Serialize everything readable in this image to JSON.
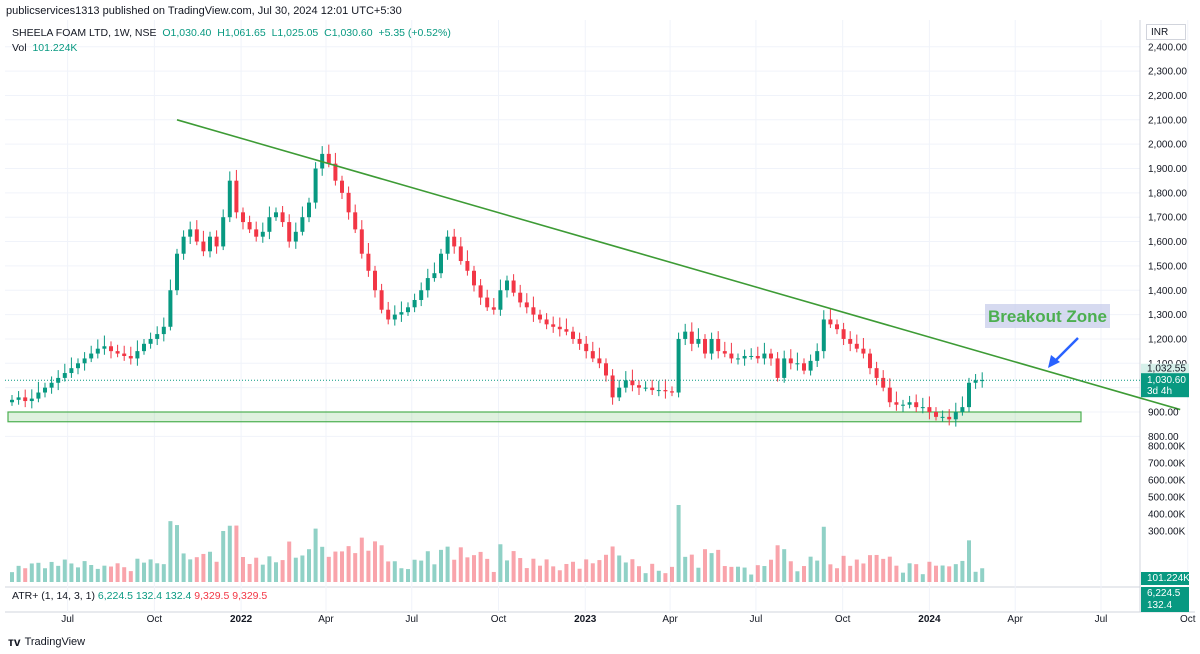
{
  "header": {
    "published": "publicservices1313 published on TradingView.com, Jul 30, 2024 12:01 UTC+5:30"
  },
  "legend": {
    "symbol": "SHEELA FOAM LTD, 1W, NSE",
    "open": "O1,030.40",
    "high": "H1,061.65",
    "low": "L1,025.05",
    "close": "C1,030.60",
    "change": "+5.35 (+0.52%)",
    "vol_label": "Vol",
    "vol_value": "101.224K"
  },
  "atr_legend": {
    "name": "ATR+ (1, 14, 3, 1)",
    "v1": "6,224.5",
    "v2": "132.4",
    "v3": "132.4",
    "v4": "9,329.5",
    "v5": "9,329.5"
  },
  "currency": "INR",
  "footer": {
    "brand": "TradingView"
  },
  "annotation": {
    "text": "Breakout Zone"
  },
  "price_labels": {
    "last": "1,030.60",
    "countdown": "3d 4h",
    "upper": "1,032.55",
    "volume": "101.224K",
    "atr": "6,224.5",
    "atr2": "132.4"
  },
  "colors": {
    "up": "#089981",
    "down": "#f23645",
    "trendline": "#3d9b35",
    "support_zone": "#4caf50",
    "annotation_text": "#4caf50",
    "annotation_bg": "#c5cae9",
    "arrow": "#2962ff"
  },
  "chart_data": {
    "type": "candlestick",
    "title": "SHEELA FOAM LTD, 1W, NSE",
    "y_axis": {
      "min": 800,
      "max": 2400,
      "ticks": [
        "800.00",
        "900.00",
        "1,000.00",
        "1,100.00",
        "1,200.00",
        "1,300.00",
        "1,400.00",
        "1,500.00",
        "1,600.00",
        "1,700.00",
        "1,800.00",
        "1,900.00",
        "2,000.00",
        "2,100.00",
        "2,200.00",
        "2,300.00",
        "2,400.00"
      ],
      "tick_values": [
        800,
        900,
        1000,
        1100,
        1200,
        1300,
        1400,
        1500,
        1600,
        1700,
        1800,
        1900,
        2000,
        2100,
        2200,
        2300,
        2400
      ]
    },
    "volume_axis": {
      "ticks": [
        "300.00K",
        "400.00K",
        "500.00K",
        "600.00K",
        "700.00K",
        "800.00K"
      ],
      "tick_values": [
        300,
        400,
        500,
        600,
        700,
        800
      ]
    },
    "x_axis": {
      "labels": [
        "Jul",
        "Oct",
        "2022",
        "Apr",
        "Jul",
        "Oct",
        "2023",
        "Apr",
        "Jul",
        "Oct",
        "2024",
        "Apr",
        "Jul",
        "Oct"
      ],
      "bold": [
        false,
        false,
        true,
        false,
        false,
        false,
        true,
        false,
        false,
        false,
        true,
        false,
        false,
        false
      ]
    },
    "start_date": "2021-05-03",
    "closes": [
      950,
      960,
      945,
      955,
      980,
      1000,
      1020,
      1040,
      1060,
      1080,
      1100,
      1120,
      1140,
      1160,
      1170,
      1150,
      1140,
      1130,
      1120,
      1150,
      1180,
      1200,
      1220,
      1250,
      1400,
      1550,
      1620,
      1650,
      1600,
      1560,
      1620,
      1580,
      1700,
      1850,
      1720,
      1680,
      1650,
      1620,
      1640,
      1700,
      1720,
      1680,
      1600,
      1640,
      1700,
      1760,
      1900,
      1960,
      1920,
      1850,
      1800,
      1720,
      1650,
      1550,
      1480,
      1400,
      1320,
      1280,
      1300,
      1310,
      1330,
      1360,
      1400,
      1450,
      1470,
      1550,
      1620,
      1580,
      1520,
      1480,
      1420,
      1370,
      1330,
      1320,
      1400,
      1440,
      1390,
      1350,
      1330,
      1300,
      1280,
      1260,
      1250,
      1240,
      1230,
      1200,
      1180,
      1150,
      1120,
      1100,
      1050,
      960,
      1000,
      1030,
      1010,
      1000,
      1000,
      990,
      990,
      985,
      980,
      1200,
      1230,
      1180,
      1200,
      1140,
      1200,
      1150,
      1140,
      1120,
      1120,
      1130,
      1130,
      1120,
      1140,
      1120,
      1040,
      1120,
      1100,
      1100,
      1070,
      1110,
      1150,
      1280,
      1260,
      1240,
      1200,
      1180,
      1160,
      1140,
      1080,
      1040,
      1000,
      940,
      930,
      930,
      940,
      920,
      920,
      900,
      880,
      880,
      870,
      900,
      920,
      1020,
      1030,
      1031
    ],
    "support_zone": [
      860,
      900
    ],
    "trendline": {
      "from": {
        "date": "2021-10-25",
        "price": 2100
      },
      "to": {
        "date": "2024-09-23",
        "price": 910
      }
    },
    "last_price": 1030.6,
    "volume_label": "Vol",
    "volume_unit": "K",
    "volume_last": 101.224,
    "atr_label": "ATR+ (1, 14, 3, 1)"
  }
}
